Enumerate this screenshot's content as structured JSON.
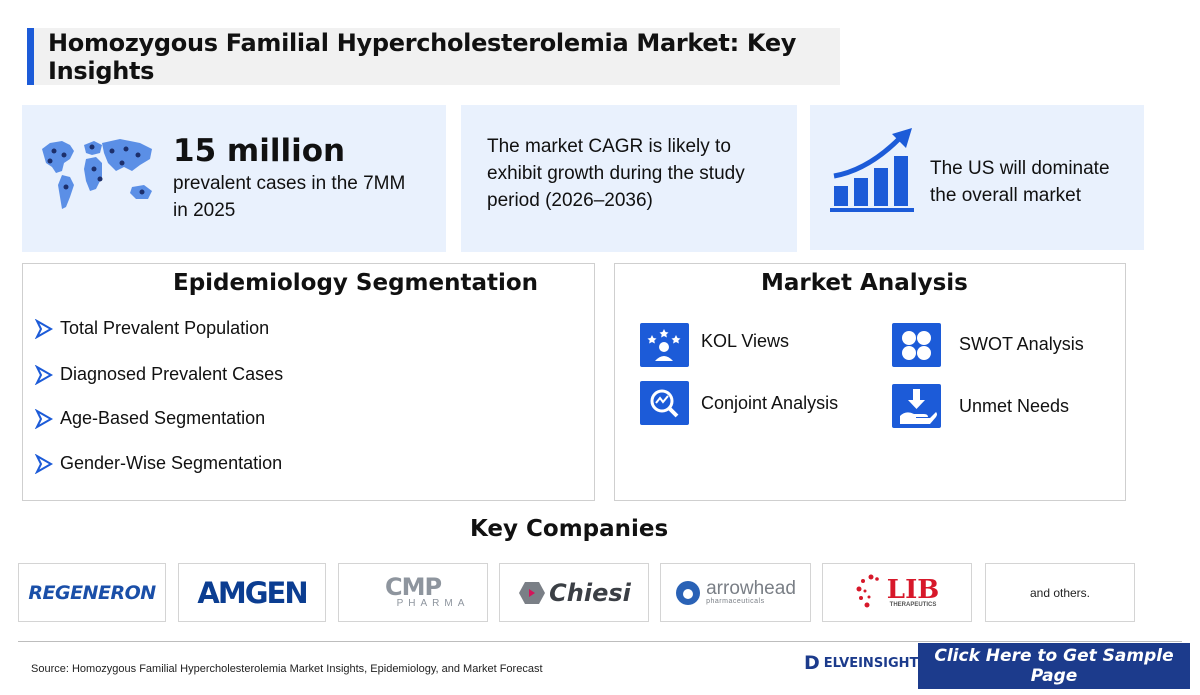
{
  "title": "Homozygous Familial Hypercholesterolemia Market: Key Insights",
  "insights": {
    "prevalence": {
      "number": "15 million",
      "text": "prevalent cases in the 7MM in 2025",
      "icon": "world-map-icon"
    },
    "cagr": {
      "text": "The market CAGR is likely to exhibit growth during the study period (2026–2036)"
    },
    "dominance": {
      "text": "The US will dominate the overall market",
      "icon": "growth-chart-icon"
    }
  },
  "epidemiology": {
    "title": "Epidemiology Segmentation",
    "items": [
      "Total Prevalent Population",
      "Diagnosed Prevalent Cases",
      "Age-Based Segmentation",
      "Gender-Wise Segmentation"
    ]
  },
  "market_analysis": {
    "title": "Market Analysis",
    "items": [
      {
        "label": "KOL Views",
        "icon": "kol-icon"
      },
      {
        "label": "SWOT Analysis",
        "icon": "swot-icon"
      },
      {
        "label": "Conjoint Analysis",
        "icon": "conjoint-icon"
      },
      {
        "label": "Unmet Needs",
        "icon": "unmet-needs-icon"
      }
    ]
  },
  "companies": {
    "title": "Key Companies",
    "logos": [
      "REGENERON",
      "AMGEN",
      "CMP",
      "PHARMA",
      "Chiesi",
      "arrowhead",
      "pharmaceuticals",
      "LIB",
      "THERAPEUTICS"
    ],
    "others": "and others."
  },
  "footer": {
    "source": "Source: Homozygous Familial Hypercholesterolemia Market Insights, Epidemiology, and Market Forecast",
    "brand": "ELVEINSIGHT",
    "brand_initial": "D",
    "cta": "Click Here to Get Sample Page"
  },
  "colors": {
    "accent": "#1c5bd8",
    "card": "#e9f1fd",
    "cta": "#1c3b8c"
  }
}
